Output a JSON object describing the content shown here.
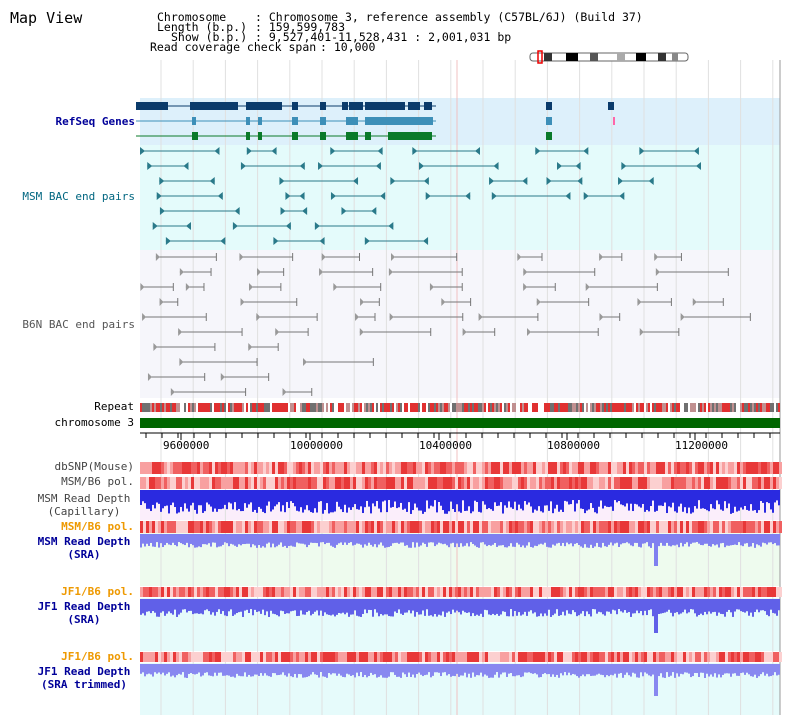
{
  "app": {
    "title": "Map View"
  },
  "header": {
    "chromosome_label": "Chromosome",
    "chromosome_value": ": Chromosome 3, reference assembly (C57BL/6J) (Build 37)",
    "length_label": "Length (b.p.)",
    "length_value": ": 159,599,783",
    "show_label": "Show (b.p.)",
    "show_value": ": 9,527,401-11,528,431 : 2,001,031 bp",
    "coverage_label": "Read coverage check span",
    "coverage_value": ": 10,000"
  },
  "tracks": {
    "refseq": "RefSeq Genes",
    "msm_bac": "MSM BAC end pairs",
    "b6n_bac": "B6N BAC end pairs",
    "repeat": "Repeat",
    "chromosome": "chromosome 3",
    "dbsnp": "dbSNP(Mouse)",
    "msm_b6_pol_1": "MSM/B6 pol.",
    "msm_depth_cap_1": "MSM Read Depth",
    "msm_depth_cap_2": "(Capillary)",
    "msm_b6_pol_2": "MSM/B6 pol.",
    "msm_depth_sra_1": "MSM Read Depth",
    "msm_depth_sra_2": "(SRA)",
    "jf1_b6_pol_1": "JF1/B6 pol.",
    "jf1_depth_sra_1": "JF1 Read Depth",
    "jf1_depth_sra_2": "(SRA)",
    "jf1_b6_pol_2": "JF1/B6 pol.",
    "jf1_depth_trim_1": "JF1 Read Depth",
    "jf1_depth_trim_2": "(SRA trimmed)"
  },
  "axis": {
    "ticks": [
      "9600000",
      "10000000",
      "10400000",
      "10800000",
      "11200000"
    ]
  },
  "colors": {
    "refseq_label": "#000099",
    "msm_bac_label": "#006680",
    "b6n_bac_label": "#555555",
    "pol_orange": "#ee9900",
    "depth_blue": "#000099",
    "chromosome_green": "#006600"
  }
}
